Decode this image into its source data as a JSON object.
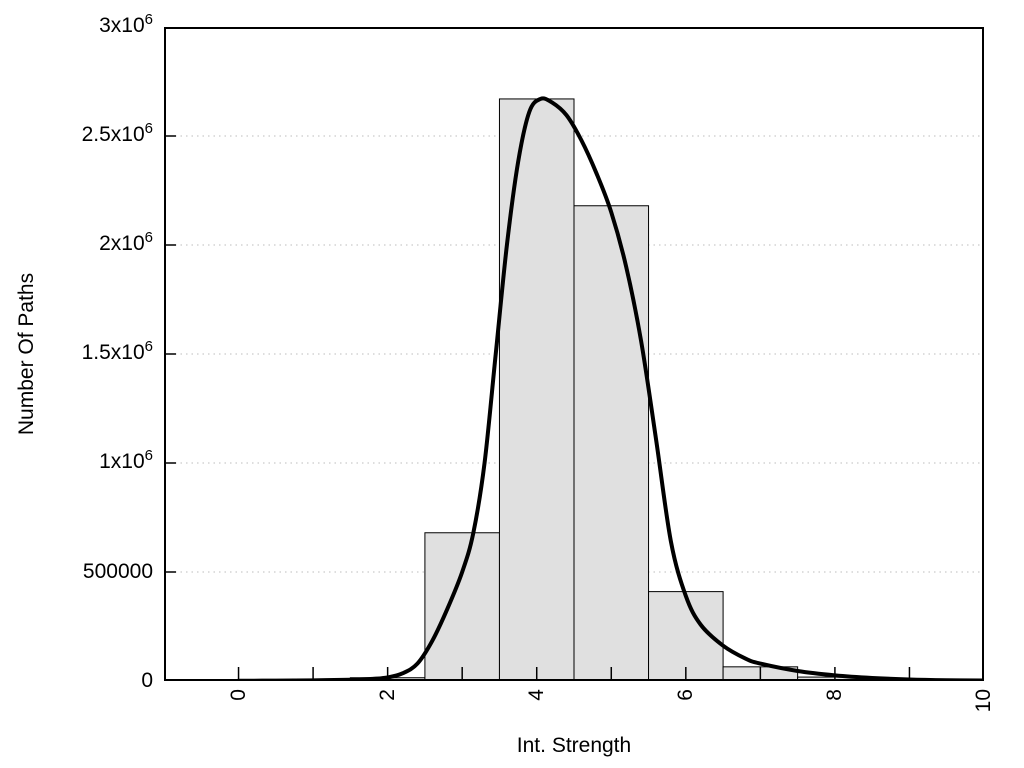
{
  "figure": {
    "background": "#ffffff",
    "border_color": "#000000"
  },
  "chart_data": {
    "type": "bar",
    "subtype": "histogram-with-fit-curve",
    "title": "",
    "xlabel": "Int. Strength",
    "ylabel": "Number Of Paths",
    "xlim": [
      -1,
      10
    ],
    "ylim": [
      0,
      3000000
    ],
    "grid": "horizontal-dotted",
    "legend": "none",
    "bar_fill": "#e0e0e0",
    "bar_stroke": "#000000",
    "curve_color": "#000000",
    "grid_color": "#bdbdbd",
    "bin_width": 1,
    "bin_centers": [
      2,
      3,
      4,
      5,
      6,
      7,
      8,
      9
    ],
    "bin_values": [
      15000,
      680000,
      2670000,
      2180000,
      410000,
      65000,
      18000,
      2500
    ],
    "grid_values": [
      500000,
      1000000,
      1500000,
      2000000,
      2500000
    ],
    "curve_points": [
      [
        0,
        1200
      ],
      [
        0.5,
        1800
      ],
      [
        1,
        3000
      ],
      [
        1.5,
        6000
      ],
      [
        1.8,
        10000
      ],
      [
        2,
        16000
      ],
      [
        2.2,
        35000
      ],
      [
        2.4,
        80000
      ],
      [
        2.6,
        185000
      ],
      [
        2.8,
        330000
      ],
      [
        3,
        500000
      ],
      [
        3.15,
        680000
      ],
      [
        3.3,
        1000000
      ],
      [
        3.45,
        1500000
      ],
      [
        3.6,
        2000000
      ],
      [
        3.75,
        2380000
      ],
      [
        3.9,
        2610000
      ],
      [
        4.05,
        2670000
      ],
      [
        4.2,
        2655000
      ],
      [
        4.4,
        2595000
      ],
      [
        4.6,
        2480000
      ],
      [
        4.8,
        2330000
      ],
      [
        5,
        2150000
      ],
      [
        5.2,
        1900000
      ],
      [
        5.4,
        1560000
      ],
      [
        5.6,
        1110000
      ],
      [
        5.8,
        640000
      ],
      [
        6,
        390000
      ],
      [
        6.2,
        258000
      ],
      [
        6.5,
        162000
      ],
      [
        6.8,
        103000
      ],
      [
        7,
        80000
      ],
      [
        7.5,
        46000
      ],
      [
        8,
        26000
      ],
      [
        8.5,
        14000
      ],
      [
        9,
        7000
      ],
      [
        9.5,
        3500
      ],
      [
        10,
        2200
      ]
    ],
    "x_ticks": {
      "positions": [
        0,
        1,
        2,
        3,
        4,
        5,
        6,
        7,
        8,
        9,
        10
      ],
      "labeled": [
        {
          "x": 0,
          "label": "0"
        },
        {
          "x": 2,
          "label": "2"
        },
        {
          "x": 4,
          "label": "4"
        },
        {
          "x": 6,
          "label": "6"
        },
        {
          "x": 8,
          "label": "8"
        },
        {
          "x": 10,
          "label": "10"
        }
      ]
    },
    "y_ticks": [
      {
        "value": 0,
        "base": "0",
        "sup": ""
      },
      {
        "value": 500000,
        "base": "500000",
        "sup": ""
      },
      {
        "value": 1000000,
        "base": "1x10",
        "sup": "6"
      },
      {
        "value": 1500000,
        "base": "1.5x10",
        "sup": "6"
      },
      {
        "value": 2000000,
        "base": "2x10",
        "sup": "6"
      },
      {
        "value": 2500000,
        "base": "2.5x10",
        "sup": "6"
      },
      {
        "value": 3000000,
        "base": "3x10",
        "sup": "6"
      }
    ]
  }
}
